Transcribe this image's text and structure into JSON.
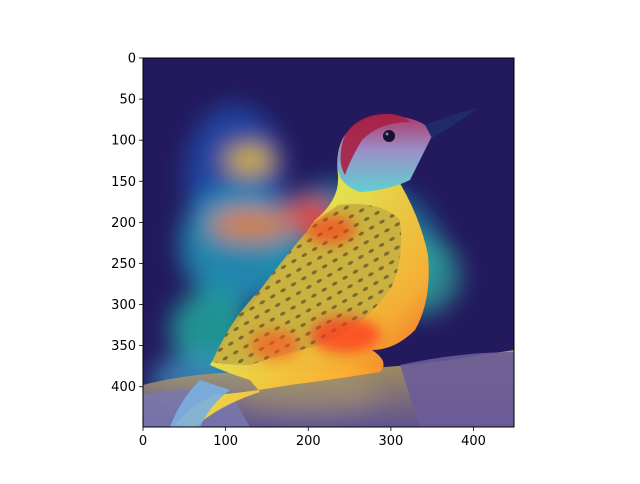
{
  "figure": {
    "description_visible": "Grad-CAM style heatmap overlay on bird image (pixel axes)",
    "background": "#ffffff"
  },
  "chart_data": {
    "type": "heatmap",
    "title": "",
    "xlabel": "",
    "ylabel": "",
    "xlim": [
      0,
      449
    ],
    "ylim": [
      449,
      0
    ],
    "x_ticks": [
      {
        "value": 0,
        "label": "0"
      },
      {
        "value": 100,
        "label": "100"
      },
      {
        "value": 200,
        "label": "200"
      },
      {
        "value": 300,
        "label": "300"
      },
      {
        "value": 400,
        "label": "400"
      }
    ],
    "y_ticks": [
      {
        "value": 0,
        "label": "0"
      },
      {
        "value": 50,
        "label": "50"
      },
      {
        "value": 100,
        "label": "100"
      },
      {
        "value": 150,
        "label": "150"
      },
      {
        "value": 200,
        "label": "200"
      },
      {
        "value": 250,
        "label": "250"
      },
      {
        "value": 300,
        "label": "300"
      },
      {
        "value": 350,
        "label": "350"
      },
      {
        "value": 400,
        "label": "400"
      }
    ],
    "grid": false,
    "colormap": "jet",
    "colors": {
      "low": "#1a0f5a",
      "mid": "#20c0d0",
      "high": "#ff2a10"
    }
  }
}
